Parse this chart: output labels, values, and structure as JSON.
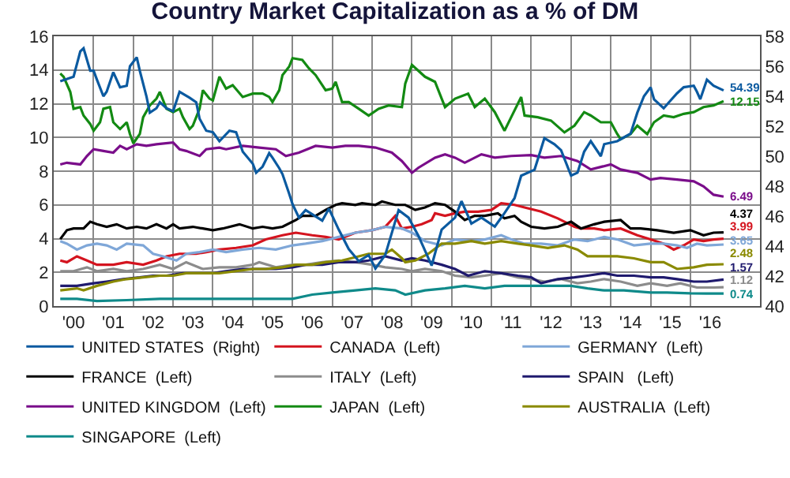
{
  "chart_data": {
    "type": "line",
    "title": "Country Market Capitalization as a % of DM",
    "xlim": [
      "2000-01",
      "2017-10"
    ],
    "xticks": [
      {
        "value": "2001-01",
        "label": null
      },
      {
        "value": "2002-01",
        "label": null
      },
      {
        "value": "2003-01",
        "label": null
      },
      {
        "value": "2004-01",
        "label": null
      },
      {
        "value": "2005-01",
        "label": null
      },
      {
        "value": "2006-01",
        "label": null
      },
      {
        "value": "2007-01",
        "label": null
      },
      {
        "value": "2008-01",
        "label": null
      },
      {
        "value": "2009-01",
        "label": null
      },
      {
        "value": "2010-01",
        "label": null
      },
      {
        "value": "2011-01",
        "label": null
      },
      {
        "value": "2012-01",
        "label": null
      },
      {
        "value": "2013-01",
        "label": null
      },
      {
        "value": "2014-01",
        "label": null
      },
      {
        "value": "2015-01",
        "label": null
      },
      {
        "value": "2016-01",
        "label": null
      },
      {
        "value": "2000-07",
        "label": "'00"
      },
      {
        "value": "2001-07",
        "label": "'01"
      },
      {
        "value": "2002-07",
        "label": "'02"
      },
      {
        "value": "2003-07",
        "label": "'03"
      },
      {
        "value": "2004-07",
        "label": "'04"
      },
      {
        "value": "2005-07",
        "label": "'05"
      },
      {
        "value": "2006-07",
        "label": "'06"
      },
      {
        "value": "2007-07",
        "label": "'07"
      },
      {
        "value": "2008-07",
        "label": "'08"
      },
      {
        "value": "2009-07",
        "label": "'09"
      },
      {
        "value": "2010-07",
        "label": "'10"
      },
      {
        "value": "2011-07",
        "label": "'11"
      },
      {
        "value": "2012-07",
        "label": "'12"
      },
      {
        "value": "2013-07",
        "label": "'13"
      },
      {
        "value": "2014-07",
        "label": "'14"
      },
      {
        "value": "2015-07",
        "label": "'15"
      },
      {
        "value": "2016-07",
        "label": "'16"
      }
    ],
    "ylim": [
      0,
      16
    ],
    "yticks": [
      0,
      2,
      4,
      6,
      8,
      10,
      12,
      14,
      16
    ],
    "y2lim": [
      40,
      58
    ],
    "y2ticks": [
      40,
      42,
      44,
      46,
      48,
      50,
      52,
      54,
      56,
      58
    ],
    "grid": true,
    "legend": "bottom",
    "series": [
      {
        "name": "UNITED STATES  (Right)",
        "color": "#0b5aa0",
        "axis": "y2",
        "x": [
          "2000-03",
          "2000-07",
          "2000-09",
          "2000-10",
          "2000-12",
          "2001-01",
          "2001-02",
          "2001-04",
          "2001-05",
          "2001-07",
          "2001-09",
          "2001-11",
          "2001-12",
          "2002-02",
          "2002-03",
          "2002-05",
          "2002-06",
          "2002-08",
          "2002-09",
          "2002-11",
          "2003-01",
          "2003-03",
          "2003-06",
          "2003-08",
          "2003-09",
          "2003-11",
          "2004-01",
          "2004-03",
          "2004-06",
          "2004-08",
          "2004-10",
          "2005-01",
          "2005-02",
          "2005-04",
          "2005-06",
          "2005-07",
          "2005-09",
          "2005-10",
          "2005-12",
          "2006-01",
          "2006-03",
          "2006-05",
          "2006-10",
          "2006-12",
          "2007-03",
          "2007-06",
          "2007-09",
          "2007-12",
          "2008-02",
          "2008-05",
          "2008-09",
          "2008-12",
          "2009-03",
          "2009-07",
          "2009-10",
          "2010-02",
          "2010-04",
          "2010-07",
          "2010-10",
          "2011-02",
          "2011-05",
          "2011-08",
          "2011-10",
          "2012-02",
          "2012-05",
          "2012-08",
          "2012-10",
          "2013-01",
          "2013-03",
          "2013-05",
          "2013-07",
          "2013-10",
          "2013-11",
          "2014-03",
          "2014-07",
          "2014-09",
          "2014-11",
          "2015-01",
          "2015-02",
          "2015-05",
          "2015-07",
          "2015-09",
          "2015-11",
          "2016-02",
          "2016-03",
          "2016-04",
          "2016-06",
          "2016-08",
          "2016-11"
        ],
        "values": [
          55.0,
          55.3,
          57.0,
          57.2,
          55.7,
          55.7,
          55.1,
          54.0,
          54.3,
          55.6,
          54.6,
          54.7,
          56.0,
          56.6,
          55.7,
          54.0,
          52.9,
          53.2,
          53.6,
          53.2,
          53.0,
          54.3,
          53.9,
          53.6,
          52.5,
          51.7,
          51.6,
          51.0,
          51.7,
          51.6,
          50.3,
          49.5,
          48.9,
          49.3,
          50.2,
          49.9,
          49.2,
          48.8,
          47.5,
          46.8,
          45.9,
          46.4,
          45.7,
          46.5,
          45.1,
          43.8,
          43.0,
          43.4,
          42.5,
          43.4,
          46.4,
          45.9,
          44.7,
          42.7,
          45.1,
          45.9,
          47.0,
          45.5,
          45.9,
          45.3,
          46.2,
          47.2,
          48.7,
          49.1,
          51.2,
          50.8,
          50.4,
          48.7,
          48.9,
          50.3,
          51.0,
          50.0,
          50.8,
          51.0,
          51.5,
          52.9,
          54.0,
          54.6,
          53.8,
          53.2,
          53.7,
          54.2,
          54.6,
          54.7,
          54.3,
          53.8,
          55.1,
          54.7,
          54.39
        ],
        "value_labels": [
          null,
          null,
          null,
          null,
          null,
          null,
          null,
          null,
          null,
          null,
          null,
          null,
          null,
          null,
          null,
          null,
          null,
          null,
          null,
          null,
          null,
          null,
          null,
          null,
          null,
          null,
          null,
          null,
          null,
          null,
          null,
          null,
          null,
          null,
          null,
          null,
          null,
          null,
          null,
          null,
          null,
          null,
          null,
          null,
          null,
          null,
          null,
          null,
          null,
          null,
          null,
          null,
          null,
          null,
          null,
          null,
          null,
          null,
          null,
          null,
          null,
          null,
          null,
          null,
          null,
          null,
          null,
          null,
          null,
          null,
          null,
          null,
          null,
          null,
          null,
          null,
          null,
          null,
          null,
          null,
          null,
          null,
          null,
          null,
          null,
          null,
          null,
          null,
          "54.39"
        ]
      },
      {
        "name": "CANADA  (Left)",
        "color": "#d4141f",
        "x": [
          "2000-03",
          "2000-05",
          "2000-08",
          "2000-11",
          "2001-02",
          "2001-07",
          "2001-11",
          "2002-04",
          "2002-08",
          "2002-11",
          "2003-03",
          "2003-08",
          "2003-11",
          "2004-03",
          "2004-08",
          "2005-01",
          "2005-05",
          "2005-10",
          "2006-02",
          "2006-07",
          "2006-11",
          "2007-03",
          "2007-08",
          "2008-01",
          "2008-05",
          "2008-08",
          "2008-10",
          "2009-01",
          "2009-04",
          "2009-07",
          "2009-08",
          "2009-11",
          "2010-02",
          "2010-05",
          "2010-09",
          "2011-01",
          "2011-04",
          "2011-08",
          "2011-11",
          "2012-04",
          "2012-09",
          "2013-02",
          "2013-04",
          "2013-08",
          "2013-11",
          "2014-04",
          "2014-09",
          "2015-01",
          "2015-05",
          "2015-08",
          "2015-11",
          "2016-02",
          "2016-05",
          "2016-08",
          "2016-11"
        ],
        "values": [
          2.7,
          2.6,
          2.95,
          2.7,
          2.45,
          2.45,
          2.6,
          2.45,
          2.7,
          2.95,
          3.1,
          3.1,
          3.2,
          3.35,
          3.45,
          3.6,
          3.95,
          4.2,
          4.35,
          4.2,
          4.1,
          3.95,
          4.35,
          4.5,
          4.7,
          5.35,
          4.6,
          4.7,
          4.85,
          5.1,
          5.5,
          5.35,
          5.5,
          5.6,
          5.6,
          5.7,
          6.1,
          6.0,
          5.85,
          5.6,
          5.2,
          4.7,
          4.6,
          4.6,
          4.5,
          4.6,
          4.2,
          3.95,
          3.7,
          3.35,
          3.6,
          3.95,
          3.85,
          3.95,
          3.99
        ],
        "value_labels": [
          null,
          null,
          null,
          null,
          null,
          null,
          null,
          null,
          null,
          null,
          null,
          null,
          null,
          null,
          null,
          null,
          null,
          null,
          null,
          null,
          null,
          null,
          null,
          null,
          null,
          null,
          null,
          null,
          null,
          null,
          null,
          null,
          null,
          null,
          null,
          null,
          null,
          null,
          null,
          null,
          null,
          null,
          null,
          null,
          null,
          null,
          null,
          null,
          null,
          null,
          null,
          null,
          null,
          null,
          "3.99"
        ]
      },
      {
        "name": "GERMANY  (Left)",
        "color": "#7fa7d8",
        "x": [
          "2000-03",
          "2000-05",
          "2000-08",
          "2000-11",
          "2001-02",
          "2001-05",
          "2001-08",
          "2001-11",
          "2002-04",
          "2002-07",
          "2002-10",
          "2003-02",
          "2003-05",
          "2003-09",
          "2004-01",
          "2004-05",
          "2004-10",
          "2005-03",
          "2005-08",
          "2006-01",
          "2006-05",
          "2006-10",
          "2007-03",
          "2007-08",
          "2008-01",
          "2008-05",
          "2008-10",
          "2009-01",
          "2009-05",
          "2009-10",
          "2010-02",
          "2010-07",
          "2010-11",
          "2011-04",
          "2011-07",
          "2011-11",
          "2012-04",
          "2012-09",
          "2013-02",
          "2013-06",
          "2013-11",
          "2014-03",
          "2014-08",
          "2015-01",
          "2015-05",
          "2015-09",
          "2015-12",
          "2016-03",
          "2016-06",
          "2016-11"
        ],
        "values": [
          3.85,
          3.7,
          3.35,
          3.6,
          3.7,
          3.6,
          3.35,
          3.7,
          3.6,
          3.1,
          2.95,
          2.7,
          3.1,
          3.2,
          3.35,
          3.2,
          3.35,
          3.45,
          3.35,
          3.6,
          3.7,
          3.85,
          4.1,
          4.35,
          4.5,
          4.7,
          4.6,
          4.35,
          3.85,
          3.6,
          3.95,
          3.85,
          3.95,
          4.2,
          3.95,
          3.7,
          3.7,
          3.6,
          3.95,
          3.85,
          4.1,
          3.95,
          3.6,
          3.7,
          3.7,
          3.6,
          3.45,
          3.7,
          3.6,
          3.65
        ],
        "value_labels": [
          null,
          null,
          null,
          null,
          null,
          null,
          null,
          null,
          null,
          null,
          null,
          null,
          null,
          null,
          null,
          null,
          null,
          null,
          null,
          null,
          null,
          null,
          null,
          null,
          null,
          null,
          null,
          null,
          null,
          null,
          null,
          null,
          null,
          null,
          null,
          null,
          null,
          null,
          null,
          null,
          null,
          null,
          null,
          null,
          null,
          null,
          null,
          null,
          null,
          "3.65"
        ]
      },
      {
        "name": "FRANCE  (Left)",
        "color": "#000000",
        "x": [
          "2000-03",
          "2000-05",
          "2000-07",
          "2000-10",
          "2000-12",
          "2001-02",
          "2001-05",
          "2001-08",
          "2001-11",
          "2002-02",
          "2002-05",
          "2002-08",
          "2002-11",
          "2003-01",
          "2003-03",
          "2003-07",
          "2003-10",
          "2004-01",
          "2004-04",
          "2004-09",
          "2005-01",
          "2005-04",
          "2005-07",
          "2005-10",
          "2006-02",
          "2006-04",
          "2006-08",
          "2006-11",
          "2007-02",
          "2007-04",
          "2007-08",
          "2007-10",
          "2008-02",
          "2008-04",
          "2008-08",
          "2008-11",
          "2009-02",
          "2009-05",
          "2009-08",
          "2009-11",
          "2010-02",
          "2010-05",
          "2010-08",
          "2010-11",
          "2011-03",
          "2011-05",
          "2011-08",
          "2011-10",
          "2012-01",
          "2012-05",
          "2012-09",
          "2013-01",
          "2013-04",
          "2013-08",
          "2013-11",
          "2014-04",
          "2014-07",
          "2014-10",
          "2015-03",
          "2015-08",
          "2016-01",
          "2016-05",
          "2016-08",
          "2016-11"
        ],
        "values": [
          3.97,
          4.5,
          4.6,
          4.6,
          5.0,
          4.85,
          4.7,
          4.85,
          4.6,
          4.7,
          4.6,
          4.85,
          4.6,
          4.85,
          4.6,
          4.7,
          4.6,
          4.5,
          4.6,
          4.85,
          4.6,
          4.7,
          4.6,
          4.7,
          5.1,
          5.35,
          5.35,
          5.7,
          6.0,
          6.1,
          6.0,
          6.1,
          6.0,
          6.2,
          6.0,
          6.0,
          5.7,
          5.85,
          6.1,
          6.0,
          5.6,
          5.1,
          5.35,
          5.35,
          5.5,
          5.2,
          5.35,
          5.0,
          4.7,
          4.6,
          4.7,
          5.0,
          4.6,
          4.85,
          5.0,
          5.1,
          4.6,
          4.6,
          4.5,
          4.35,
          4.5,
          4.2,
          4.35,
          4.37
        ],
        "value_labels": [
          null,
          null,
          null,
          null,
          null,
          null,
          null,
          null,
          null,
          null,
          null,
          null,
          null,
          null,
          null,
          null,
          null,
          null,
          null,
          null,
          null,
          null,
          null,
          null,
          null,
          null,
          null,
          null,
          null,
          null,
          null,
          null,
          null,
          null,
          null,
          null,
          null,
          null,
          null,
          null,
          null,
          null,
          null,
          null,
          null,
          null,
          null,
          null,
          null,
          null,
          null,
          null,
          null,
          null,
          null,
          null,
          null,
          null,
          null,
          null,
          null,
          null,
          null,
          "4.37"
        ]
      },
      {
        "name": "ITALY  (Left)",
        "color": "#8c8c8c",
        "x": [
          "2000-03",
          "2000-07",
          "2000-11",
          "2001-02",
          "2001-07",
          "2001-11",
          "2002-04",
          "2002-09",
          "2003-01",
          "2003-05",
          "2003-10",
          "2004-03",
          "2004-08",
          "2005-01",
          "2005-03",
          "2005-08",
          "2006-01",
          "2006-05",
          "2006-10",
          "2007-03",
          "2007-08",
          "2008-01",
          "2008-05",
          "2008-10",
          "2009-01",
          "2009-05",
          "2009-10",
          "2010-02",
          "2010-07",
          "2010-11",
          "2011-04",
          "2011-09",
          "2012-01",
          "2012-05",
          "2012-10",
          "2013-03",
          "2013-07",
          "2013-11",
          "2014-04",
          "2014-09",
          "2015-01",
          "2015-06",
          "2015-10",
          "2016-03",
          "2016-08",
          "2016-11"
        ],
        "values": [
          2.07,
          2.07,
          2.3,
          2.07,
          2.2,
          2.07,
          2.2,
          2.45,
          2.2,
          2.6,
          2.2,
          2.3,
          2.3,
          2.45,
          2.6,
          2.3,
          2.45,
          2.45,
          2.6,
          2.7,
          2.6,
          2.45,
          2.3,
          2.2,
          2.07,
          2.2,
          2.07,
          1.8,
          1.7,
          1.8,
          1.95,
          1.7,
          1.6,
          1.45,
          1.6,
          1.35,
          1.45,
          1.6,
          1.45,
          1.2,
          1.35,
          1.2,
          1.35,
          1.1,
          1.1,
          1.12
        ],
        "value_labels": [
          null,
          null,
          null,
          null,
          null,
          null,
          null,
          null,
          null,
          null,
          null,
          null,
          null,
          null,
          null,
          null,
          null,
          null,
          null,
          null,
          null,
          null,
          null,
          null,
          null,
          null,
          null,
          null,
          null,
          null,
          null,
          null,
          null,
          null,
          null,
          null,
          null,
          null,
          null,
          null,
          null,
          null,
          null,
          null,
          null,
          "1.12"
        ]
      },
      {
        "name": "SPAIN   (Left)",
        "color": "#1f1a6e",
        "x": [
          "2000-03",
          "2000-08",
          "2001-01",
          "2001-05",
          "2001-10",
          "2002-03",
          "2002-07",
          "2002-11",
          "2003-04",
          "2003-08",
          "2004-01",
          "2004-05",
          "2004-10",
          "2005-03",
          "2005-08",
          "2006-01",
          "2006-05",
          "2006-10",
          "2007-03",
          "2007-08",
          "2007-12",
          "2008-05",
          "2008-10",
          "2009-01",
          "2009-05",
          "2009-10",
          "2010-02",
          "2010-06",
          "2010-11",
          "2011-04",
          "2011-09",
          "2012-01",
          "2012-04",
          "2012-09",
          "2013-02",
          "2013-06",
          "2013-11",
          "2014-03",
          "2014-08",
          "2015-01",
          "2015-05",
          "2015-09",
          "2016-02",
          "2016-06",
          "2016-11"
        ],
        "values": [
          1.2,
          1.2,
          1.35,
          1.45,
          1.6,
          1.7,
          1.8,
          1.8,
          1.95,
          1.95,
          1.95,
          2.07,
          2.2,
          2.2,
          2.2,
          2.3,
          2.45,
          2.45,
          2.6,
          2.6,
          2.7,
          2.95,
          2.7,
          2.83,
          2.7,
          2.45,
          2.2,
          1.8,
          2.07,
          1.95,
          1.8,
          1.7,
          1.35,
          1.6,
          1.7,
          1.8,
          1.95,
          1.8,
          1.8,
          1.7,
          1.7,
          1.6,
          1.45,
          1.45,
          1.57
        ],
        "value_labels": [
          null,
          null,
          null,
          null,
          null,
          null,
          null,
          null,
          null,
          null,
          null,
          null,
          null,
          null,
          null,
          null,
          null,
          null,
          null,
          null,
          null,
          null,
          null,
          null,
          null,
          null,
          null,
          null,
          null,
          null,
          null,
          null,
          null,
          null,
          null,
          null,
          null,
          null,
          null,
          null,
          null,
          null,
          null,
          null,
          "1.57"
        ]
      },
      {
        "name": "UNITED KINGDOM  (Left)",
        "color": "#7a0d8a",
        "x": [
          "2000-03",
          "2000-05",
          "2000-09",
          "2000-11",
          "2001-01",
          "2001-04",
          "2001-07",
          "2001-09",
          "2001-11",
          "2002-02",
          "2002-05",
          "2002-08",
          "2003-01",
          "2003-03",
          "2003-05",
          "2003-09",
          "2003-11",
          "2004-03",
          "2004-05",
          "2004-10",
          "2005-03",
          "2005-08",
          "2005-11",
          "2006-03",
          "2006-08",
          "2007-01",
          "2007-05",
          "2007-09",
          "2008-02",
          "2008-07",
          "2008-10",
          "2009-01",
          "2009-03",
          "2009-08",
          "2009-11",
          "2010-02",
          "2010-05",
          "2010-10",
          "2011-02",
          "2011-07",
          "2012-01",
          "2012-05",
          "2012-10",
          "2013-03",
          "2013-07",
          "2014-01",
          "2014-04",
          "2014-09",
          "2015-01",
          "2015-04",
          "2015-09",
          "2016-02",
          "2016-05",
          "2016-08",
          "2016-11"
        ],
        "values": [
          8.4,
          8.5,
          8.4,
          8.9,
          9.3,
          9.2,
          9.1,
          9.5,
          9.3,
          9.6,
          9.5,
          9.6,
          9.7,
          9.3,
          9.2,
          8.9,
          9.3,
          9.4,
          9.3,
          9.5,
          9.4,
          9.3,
          8.9,
          9.1,
          9.5,
          9.4,
          9.5,
          9.5,
          9.4,
          9.1,
          8.6,
          7.9,
          8.2,
          8.8,
          9.0,
          8.8,
          8.5,
          9.0,
          8.8,
          8.9,
          8.95,
          8.8,
          8.9,
          8.6,
          8.1,
          8.4,
          8.1,
          7.9,
          7.5,
          7.6,
          7.5,
          7.4,
          7.1,
          6.6,
          6.49
        ],
        "value_labels": [
          null,
          null,
          null,
          null,
          null,
          null,
          null,
          null,
          null,
          null,
          null,
          null,
          null,
          null,
          null,
          null,
          null,
          null,
          null,
          null,
          null,
          null,
          null,
          null,
          null,
          null,
          null,
          null,
          null,
          null,
          null,
          null,
          null,
          null,
          null,
          null,
          null,
          null,
          null,
          null,
          null,
          null,
          null,
          null,
          null,
          null,
          null,
          null,
          null,
          null,
          null,
          null,
          null,
          null,
          "6.49"
        ]
      },
      {
        "name": "JAPAN  (Left)",
        "color": "#138a13",
        "x": [
          "2000-03",
          "2000-04",
          "2000-06",
          "2000-07",
          "2000-09",
          "2000-10",
          "2000-12",
          "2001-01",
          "2001-03",
          "2001-04",
          "2001-06",
          "2001-07",
          "2001-09",
          "2001-11",
          "2001-12",
          "2002-01",
          "2002-03",
          "2002-04",
          "2002-06",
          "2002-08",
          "2002-09",
          "2002-11",
          "2003-01",
          "2003-03",
          "2003-04",
          "2003-06",
          "2003-07",
          "2003-09",
          "2003-10",
          "2003-12",
          "2004-01",
          "2004-03",
          "2004-05",
          "2004-07",
          "2004-10",
          "2005-01",
          "2005-04",
          "2005-06",
          "2005-07",
          "2005-09",
          "2005-10",
          "2005-12",
          "2006-01",
          "2006-04",
          "2006-06",
          "2006-08",
          "2006-11",
          "2007-01",
          "2007-02",
          "2007-04",
          "2007-06",
          "2007-09",
          "2007-12",
          "2008-03",
          "2008-06",
          "2008-10",
          "2008-11",
          "2009-01",
          "2009-05",
          "2009-08",
          "2009-11",
          "2010-02",
          "2010-06",
          "2010-08",
          "2010-11",
          "2011-02",
          "2011-05",
          "2011-07",
          "2011-10",
          "2011-11",
          "2012-03",
          "2012-07",
          "2012-11",
          "2013-02",
          "2013-05",
          "2013-07",
          "2013-10",
          "2014-01",
          "2014-03",
          "2014-04",
          "2014-07",
          "2014-09",
          "2014-12",
          "2015-02",
          "2015-05",
          "2015-08",
          "2015-11",
          "2016-02",
          "2016-05",
          "2016-08",
          "2016-11"
        ],
        "values": [
          13.8,
          13.6,
          12.7,
          11.7,
          11.8,
          11.3,
          10.8,
          10.4,
          10.9,
          11.7,
          11.8,
          10.9,
          10.5,
          10.9,
          10.2,
          9.65,
          10.2,
          11.2,
          11.9,
          12.3,
          12.7,
          11.7,
          11.5,
          11.7,
          11.2,
          10.5,
          10.7,
          11.7,
          12.8,
          12.3,
          12.2,
          13.6,
          12.9,
          13.1,
          12.4,
          12.6,
          12.6,
          12.4,
          12.1,
          12.8,
          13.7,
          14.2,
          14.7,
          14.6,
          14.1,
          13.7,
          12.8,
          12.9,
          13.3,
          12.1,
          12.1,
          11.7,
          11.3,
          11.7,
          11.9,
          11.8,
          13.2,
          14.3,
          13.6,
          13.3,
          11.8,
          12.3,
          12.6,
          11.8,
          12.3,
          11.5,
          10.4,
          11.2,
          12.4,
          11.3,
          11.2,
          11.0,
          10.3,
          10.7,
          11.5,
          11.3,
          10.9,
          10.9,
          10.2,
          9.9,
          10.2,
          10.7,
          10.2,
          10.9,
          11.3,
          11.2,
          11.4,
          11.5,
          11.8,
          11.9,
          12.15
        ],
        "value_labels": [
          null,
          null,
          null,
          null,
          null,
          null,
          null,
          null,
          null,
          null,
          null,
          null,
          null,
          null,
          null,
          null,
          null,
          null,
          null,
          null,
          null,
          null,
          null,
          null,
          null,
          null,
          null,
          null,
          null,
          null,
          null,
          null,
          null,
          null,
          null,
          null,
          null,
          null,
          null,
          null,
          null,
          null,
          null,
          null,
          null,
          null,
          null,
          null,
          null,
          null,
          null,
          null,
          null,
          null,
          null,
          null,
          null,
          null,
          null,
          null,
          null,
          null,
          null,
          null,
          null,
          null,
          null,
          null,
          null,
          null,
          null,
          null,
          null,
          null,
          null,
          null,
          null,
          null,
          null,
          null,
          null,
          null,
          null,
          null,
          null,
          null,
          null,
          null,
          null,
          null,
          "12.15"
        ]
      },
      {
        "name": "AUSTRALIA  (Left)",
        "color": "#8a8a00",
        "x": [
          "2000-03",
          "2000-08",
          "2000-10",
          "2001-02",
          "2001-07",
          "2001-11",
          "2002-04",
          "2002-09",
          "2003-01",
          "2003-05",
          "2003-10",
          "2004-03",
          "2004-08",
          "2005-01",
          "2005-05",
          "2005-10",
          "2006-02",
          "2006-07",
          "2006-11",
          "2007-04",
          "2007-09",
          "2007-12",
          "2008-05",
          "2008-07",
          "2008-10",
          "2008-11",
          "2009-02",
          "2009-06",
          "2009-10",
          "2010-02",
          "2010-07",
          "2010-11",
          "2011-04",
          "2011-09",
          "2012-01",
          "2012-06",
          "2012-11",
          "2013-03",
          "2013-06",
          "2013-11",
          "2014-03",
          "2014-08",
          "2015-01",
          "2015-05",
          "2015-09",
          "2016-02",
          "2016-06",
          "2016-11"
        ],
        "values": [
          0.93,
          1.05,
          0.93,
          1.2,
          1.45,
          1.6,
          1.7,
          1.8,
          1.8,
          1.95,
          1.95,
          1.95,
          2.07,
          2.2,
          2.2,
          2.3,
          2.45,
          2.45,
          2.6,
          2.7,
          2.95,
          3.1,
          3.1,
          3.35,
          2.83,
          2.6,
          2.7,
          3.1,
          3.7,
          3.7,
          3.85,
          3.7,
          3.85,
          3.7,
          3.6,
          3.45,
          3.6,
          3.35,
          2.95,
          2.95,
          2.95,
          2.83,
          2.6,
          2.6,
          2.2,
          2.3,
          2.45,
          2.48
        ],
        "value_labels": [
          null,
          null,
          null,
          null,
          null,
          null,
          null,
          null,
          null,
          null,
          null,
          null,
          null,
          null,
          null,
          null,
          null,
          null,
          null,
          null,
          null,
          null,
          null,
          null,
          null,
          null,
          null,
          null,
          null,
          null,
          null,
          null,
          null,
          null,
          null,
          null,
          null,
          null,
          null,
          null,
          null,
          null,
          null,
          null,
          null,
          null,
          null,
          "2.48"
        ]
      },
      {
        "name": "SINGAPORE  (Left)",
        "color": "#0f8a8a",
        "x": [
          "2000-03",
          "2000-08",
          "2001-02",
          "2001-11",
          "2002-09",
          "2003-08",
          "2004-05",
          "2005-05",
          "2006-01",
          "2006-07",
          "2007-01",
          "2007-08",
          "2008-02",
          "2008-08",
          "2008-11",
          "2009-05",
          "2009-11",
          "2010-05",
          "2010-11",
          "2011-05",
          "2011-11",
          "2012-05",
          "2013-01",
          "2013-06",
          "2013-11",
          "2014-05",
          "2015-01",
          "2015-06",
          "2016-01",
          "2016-06",
          "2016-11"
        ],
        "values": [
          0.43,
          0.43,
          0.3,
          0.35,
          0.43,
          0.43,
          0.43,
          0.43,
          0.43,
          0.68,
          0.8,
          0.93,
          1.05,
          0.93,
          0.68,
          0.93,
          1.05,
          1.2,
          1.05,
          1.2,
          1.2,
          1.2,
          1.2,
          1.05,
          0.93,
          0.93,
          0.8,
          0.8,
          0.75,
          0.74,
          0.74
        ],
        "value_labels": [
          null,
          null,
          null,
          null,
          null,
          null,
          null,
          null,
          null,
          null,
          null,
          null,
          null,
          null,
          null,
          null,
          null,
          null,
          null,
          null,
          null,
          null,
          null,
          null,
          null,
          null,
          null,
          null,
          null,
          null,
          "0.74"
        ]
      }
    ]
  }
}
